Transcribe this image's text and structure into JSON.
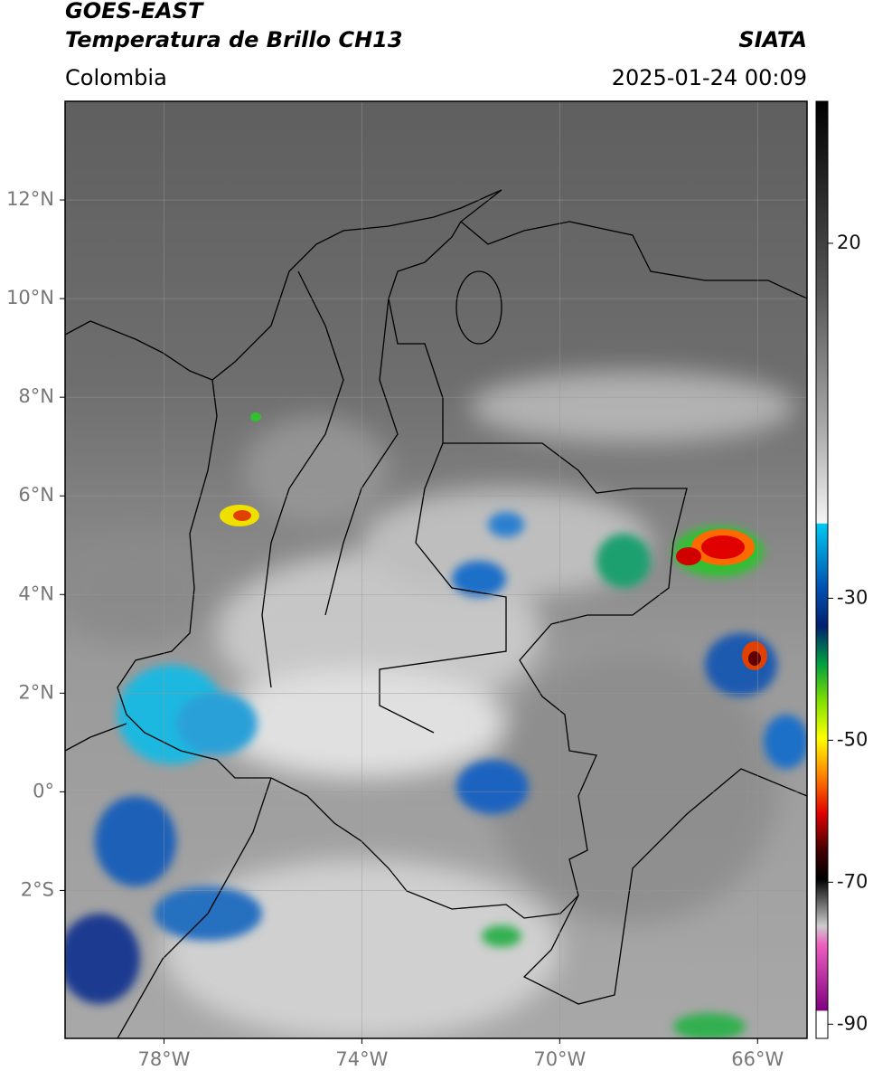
{
  "header": {
    "title": "GOES-EAST",
    "subtitle": "Temperatura de Brillo CH13",
    "region": "Colombia",
    "source": "SIATA",
    "datetime": "2025-01-24 00:09"
  },
  "map": {
    "xlim": [
      -80,
      -65
    ],
    "ylim": [
      -5,
      14
    ],
    "xticks": [
      {
        "value": -78,
        "label": "78°W"
      },
      {
        "value": -74,
        "label": "74°W"
      },
      {
        "value": -70,
        "label": "70°W"
      },
      {
        "value": -66,
        "label": "66°W"
      }
    ],
    "yticks": [
      {
        "value": 12,
        "label": "12°N"
      },
      {
        "value": 10,
        "label": "10°N"
      },
      {
        "value": 8,
        "label": "8°N"
      },
      {
        "value": 6,
        "label": "6°N"
      },
      {
        "value": 4,
        "label": "4°N"
      },
      {
        "value": 2,
        "label": "2°N"
      },
      {
        "value": 0,
        "label": "0°"
      },
      {
        "value": -2,
        "label": "2°S"
      }
    ]
  },
  "colorbar": {
    "clim": [
      -92,
      40
    ],
    "ticks": [
      20,
      -30,
      -50,
      -70,
      -90
    ]
  }
}
